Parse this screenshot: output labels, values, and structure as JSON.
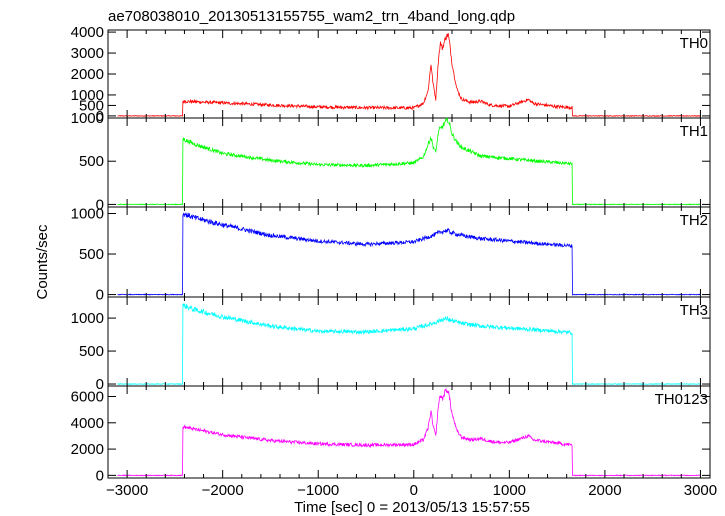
{
  "chart_data": {
    "type": "line",
    "title": "ae708038010_20130513155755_wam2_trn_4band_long.qdp",
    "xlabel": "Time [sec] 0 = 2013/05/13 15:57:55",
    "ylabel": "Counts/sec",
    "xlim": [
      -3200,
      3100
    ],
    "x_ticks": [
      -3000,
      -2000,
      -1000,
      0,
      1000,
      2000,
      3000
    ],
    "x_tick_labels": [
      "−3000",
      "−2000",
      "−1000",
      "0",
      "1000",
      "2000",
      "3000"
    ],
    "grid": false,
    "panels": [
      {
        "name": "TH0",
        "color": "#ff0000",
        "ylim": [
          -100,
          4100
        ],
        "y_ticks": [
          0,
          500,
          1000,
          2000,
          3000,
          4000
        ],
        "y_tick_labels": [
          "0",
          "500",
          "1000",
          "2000",
          "3000",
          "4000"
        ],
        "x": [
          -3100,
          -2420,
          -2420,
          -2000,
          -1500,
          -1000,
          -500,
          0,
          100,
          150,
          180,
          200,
          230,
          260,
          280,
          300,
          330,
          360,
          380,
          400,
          450,
          500,
          600,
          700,
          800,
          900,
          1000,
          1200,
          1250,
          1300,
          1500,
          1660,
          1660,
          3000
        ],
        "y": [
          0,
          0,
          700,
          620,
          520,
          430,
          390,
          380,
          600,
          1200,
          2500,
          1600,
          800,
          2800,
          3500,
          3200,
          3700,
          3900,
          3300,
          2500,
          1300,
          800,
          650,
          700,
          520,
          480,
          460,
          780,
          600,
          560,
          440,
          400,
          0,
          0
        ]
      },
      {
        "name": "TH1",
        "color": "#00ff00",
        "ylim": [
          -30,
          1000
        ],
        "y_ticks": [
          0,
          500,
          1000
        ],
        "y_tick_labels": [
          "0",
          "500",
          "1000"
        ],
        "x": [
          -3100,
          -2420,
          -2420,
          -2300,
          -2000,
          -1500,
          -1000,
          -500,
          0,
          100,
          180,
          200,
          230,
          260,
          300,
          330,
          360,
          400,
          450,
          500,
          700,
          1000,
          1300,
          1660,
          1660,
          3000
        ],
        "y": [
          0,
          0,
          760,
          700,
          590,
          510,
          460,
          450,
          480,
          550,
          780,
          680,
          600,
          850,
          900,
          950,
          980,
          820,
          720,
          660,
          560,
          530,
          500,
          470,
          0,
          0
        ]
      },
      {
        "name": "TH2",
        "color": "#0000ff",
        "ylim": [
          -30,
          1080
        ],
        "y_ticks": [
          0,
          500,
          1000
        ],
        "y_tick_labels": [
          "0",
          "500",
          "1000"
        ],
        "x": [
          -3100,
          -2420,
          -2420,
          -2300,
          -2000,
          -1500,
          -1000,
          -500,
          0,
          200,
          300,
          350,
          400,
          500,
          700,
          1000,
          1300,
          1660,
          1660,
          3000
        ],
        "y": [
          0,
          0,
          1000,
          950,
          860,
          730,
          660,
          620,
          650,
          730,
          780,
          790,
          760,
          730,
          690,
          660,
          630,
          600,
          0,
          0
        ]
      },
      {
        "name": "TH3",
        "color": "#00ffff",
        "ylim": [
          -30,
          1320
        ],
        "y_ticks": [
          0,
          500,
          1000
        ],
        "y_tick_labels": [
          "0",
          "500",
          "1000"
        ],
        "x": [
          -3100,
          -2420,
          -2420,
          -2300,
          -2000,
          -1500,
          -1000,
          -500,
          0,
          200,
          300,
          350,
          400,
          500,
          700,
          1000,
          1300,
          1660,
          1660,
          3000
        ],
        "y": [
          0,
          0,
          1200,
          1130,
          1020,
          880,
          800,
          790,
          840,
          920,
          980,
          990,
          960,
          920,
          880,
          850,
          820,
          780,
          0,
          0
        ]
      },
      {
        "name": "TH0123",
        "color": "#ff00ff",
        "ylim": [
          -200,
          6800
        ],
        "y_ticks": [
          0,
          2000,
          4000,
          6000
        ],
        "y_tick_labels": [
          "0",
          "2000",
          "4000",
          "6000"
        ],
        "x": [
          -3100,
          -2420,
          -2420,
          -2000,
          -1500,
          -1000,
          -500,
          0,
          100,
          150,
          180,
          200,
          230,
          260,
          280,
          300,
          330,
          360,
          380,
          400,
          450,
          500,
          600,
          700,
          800,
          900,
          1000,
          1200,
          1250,
          1300,
          1500,
          1660,
          1660,
          3000
        ],
        "y": [
          0,
          0,
          3700,
          3100,
          2650,
          2400,
          2300,
          2350,
          2700,
          3600,
          4900,
          3800,
          3000,
          5500,
          6100,
          5800,
          6400,
          6500,
          5600,
          4700,
          3400,
          2900,
          2700,
          2800,
          2600,
          2500,
          2500,
          3000,
          2700,
          2650,
          2450,
          2300,
          0,
          0
        ]
      }
    ]
  }
}
